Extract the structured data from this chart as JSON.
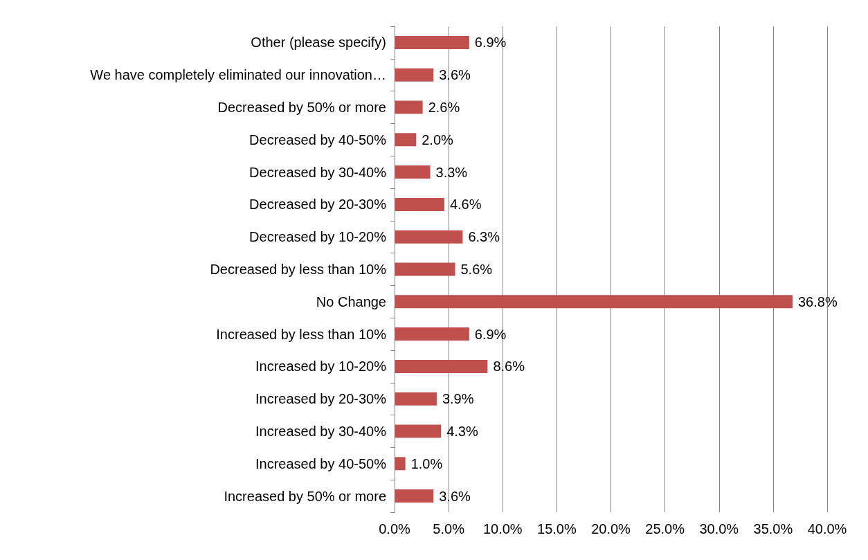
{
  "chart_data": {
    "type": "bar",
    "orientation": "horizontal",
    "categories": [
      "Other (please specify)",
      "We have completely eliminated our innovation…",
      "Decreased by 50% or more",
      "Decreased by 40-50%",
      "Decreased by 30-40%",
      "Decreased by 20-30%",
      "Decreased by 10-20%",
      "Decreased by less than 10%",
      "No Change",
      "Increased by less than 10%",
      "Increased by 10-20%",
      "Increased by 20-30%",
      "Increased by 30-40%",
      "Increased by 40-50%",
      "Increased by 50% or more"
    ],
    "values": [
      6.9,
      3.6,
      2.6,
      2.0,
      3.3,
      4.6,
      6.3,
      5.6,
      36.8,
      6.9,
      8.6,
      3.9,
      4.3,
      1.0,
      3.6
    ],
    "value_labels": [
      "6.9%",
      "3.6%",
      "2.6%",
      "2.0%",
      "3.3%",
      "4.6%",
      "6.3%",
      "5.6%",
      "36.8%",
      "6.9%",
      "8.6%",
      "3.9%",
      "4.3%",
      "1.0%",
      "3.6%"
    ],
    "color": "#c0504d",
    "xlim": [
      0,
      40
    ],
    "xticks": [
      {
        "value": 0,
        "label": "0.0%"
      },
      {
        "value": 5,
        "label": "5.0%"
      },
      {
        "value": 10,
        "label": "10.0%"
      },
      {
        "value": 15,
        "label": "15.0%"
      },
      {
        "value": 20,
        "label": "20.0%"
      },
      {
        "value": 25,
        "label": "25.0%"
      },
      {
        "value": 30,
        "label": "30.0%"
      },
      {
        "value": 35,
        "label": "35.0%"
      },
      {
        "value": 40,
        "label": "40.0%"
      }
    ],
    "grid": "x"
  }
}
